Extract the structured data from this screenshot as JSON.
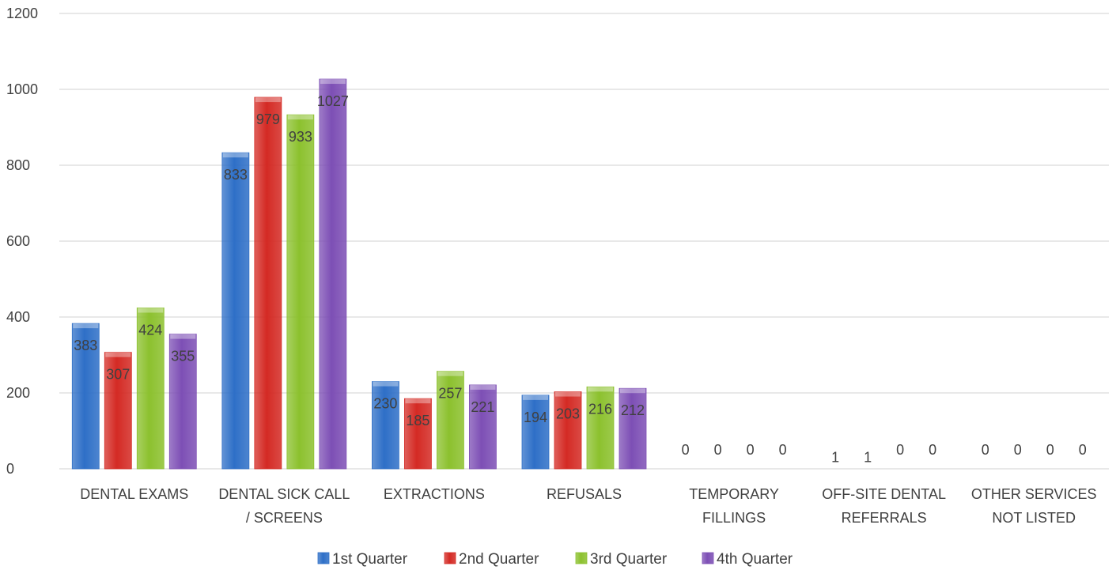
{
  "chart_data": {
    "type": "bar",
    "title": "",
    "xlabel": "",
    "ylabel": "",
    "ylim": [
      0,
      1200
    ],
    "yticks": [
      "0",
      "200",
      "400",
      "600",
      "800",
      "1000",
      "1200"
    ],
    "grid": true,
    "legend_position": "bottom",
    "categories": [
      [
        "DENTAL EXAMS"
      ],
      [
        "DENTAL SICK CALL",
        "/ SCREENS"
      ],
      [
        "EXTRACTIONS"
      ],
      [
        "REFUSALS"
      ],
      [
        "TEMPORARY",
        "FILLINGS"
      ],
      [
        "OFF-SITE DENTAL",
        "REFERRALS"
      ],
      [
        "OTHER SERVICES",
        "NOT LISTED"
      ]
    ],
    "series": [
      {
        "name": "1st Quarter",
        "color": "#2e6fc7",
        "values": [
          383,
          833,
          230,
          194,
          0,
          1,
          0
        ]
      },
      {
        "name": "2nd Quarter",
        "color": "#d42a24",
        "values": [
          307,
          979,
          185,
          203,
          0,
          1,
          0
        ]
      },
      {
        "name": "3rd Quarter",
        "color": "#8cc12e",
        "values": [
          424,
          933,
          257,
          216,
          0,
          0,
          0
        ]
      },
      {
        "name": "4th Quarter",
        "color": "#7d4fb5",
        "values": [
          355,
          1027,
          221,
          212,
          0,
          0,
          0
        ]
      }
    ]
  }
}
